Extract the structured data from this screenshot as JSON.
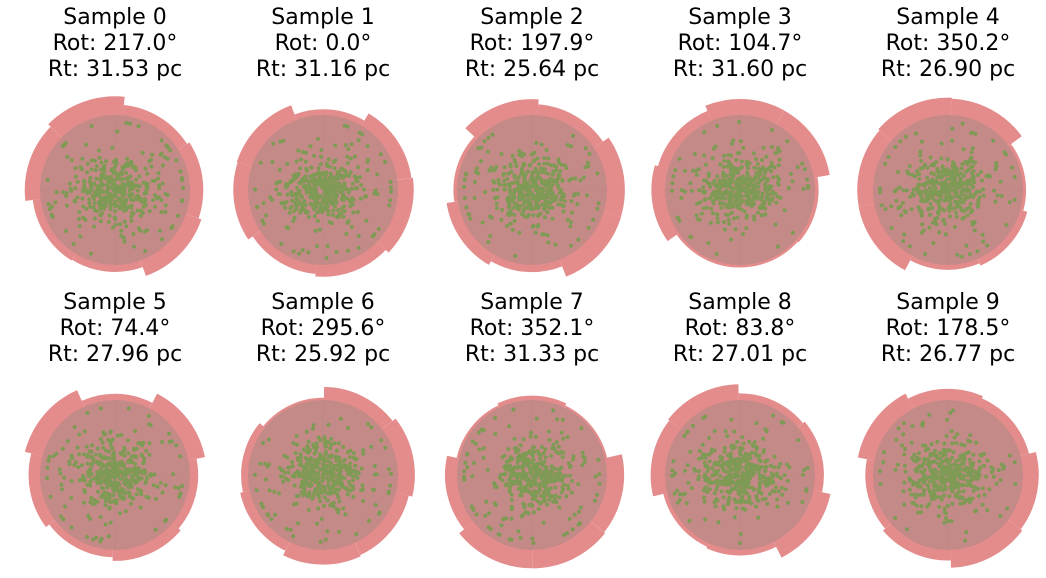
{
  "figure": {
    "colors": {
      "background": "#ffffff",
      "disk": "#c48a88",
      "rim": "#e48c8c",
      "points": "#7f9a55"
    }
  },
  "chart_data": [
    {
      "type": "scatter",
      "title_lines": [
        "Sample 0",
        "Rot: 217.0°",
        "Rt: 31.53 pc"
      ]
    },
    {
      "type": "scatter",
      "title_lines": [
        "Sample 1",
        "Rot: 0.0°",
        "Rt: 31.16 pc"
      ]
    },
    {
      "type": "scatter",
      "title_lines": [
        "Sample 2",
        "Rot: 197.9°",
        "Rt: 25.64 pc"
      ]
    },
    {
      "type": "scatter",
      "title_lines": [
        "Sample 3",
        "Rot: 104.7°",
        "Rt: 31.60 pc"
      ]
    },
    {
      "type": "scatter",
      "title_lines": [
        "Sample 4",
        "Rot: 350.2°",
        "Rt: 26.90 pc"
      ]
    },
    {
      "type": "scatter",
      "title_lines": [
        "Sample 5",
        "Rot: 74.4°",
        "Rt: 27.96 pc"
      ]
    },
    {
      "type": "scatter",
      "title_lines": [
        "Sample 6",
        "Rot: 295.6°",
        "Rt: 25.92 pc"
      ]
    },
    {
      "type": "scatter",
      "title_lines": [
        "Sample 7",
        "Rot: 352.1°",
        "Rt: 31.33 pc"
      ]
    },
    {
      "type": "scatter",
      "title_lines": [
        "Sample 8",
        "Rot: 83.8°",
        "Rt: 27.01 pc"
      ]
    },
    {
      "type": "scatter",
      "title_lines": [
        "Sample 9",
        "Rot: 178.5°",
        "Rt: 26.77 pc"
      ]
    }
  ]
}
